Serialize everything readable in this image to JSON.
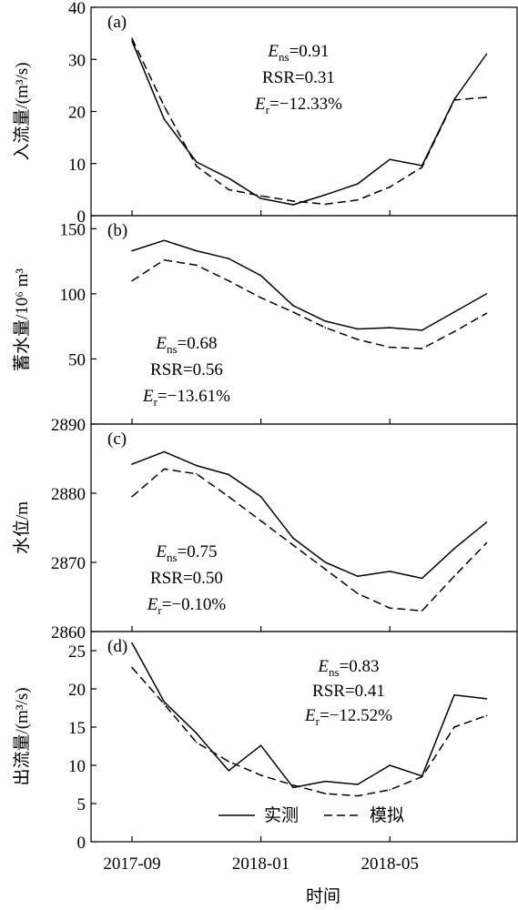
{
  "figure": {
    "xlabel": "时间",
    "x_ticks": [
      {
        "x": 0,
        "label": "2017-09"
      },
      {
        "x": 4,
        "label": "2018-01"
      },
      {
        "x": 8,
        "label": "2018-05"
      }
    ],
    "legend": {
      "placement": "bottom of panel (d)",
      "entries": [
        {
          "series": "observed",
          "label": "实测",
          "style": "solid"
        },
        {
          "series": "simulated",
          "label": "模拟",
          "style": "dashed"
        }
      ]
    }
  },
  "chart_data": [
    {
      "type": "line",
      "panel": "(a)",
      "ylabel": "入流量/(m³/s)",
      "ylim": [
        0,
        40
      ],
      "yticks": [
        0,
        10,
        20,
        30,
        40
      ],
      "x": [
        0,
        1,
        2,
        3,
        4,
        5,
        6,
        7,
        8,
        9,
        10,
        11
      ],
      "series": [
        {
          "key": "observed",
          "values": [
            33.5,
            18.5,
            10.3,
            7.2,
            3.3,
            2.1,
            4.0,
            6.1,
            10.8,
            9.6,
            22.3,
            31.0
          ]
        },
        {
          "key": "simulated",
          "values": [
            34.0,
            21.0,
            9.5,
            5.0,
            3.8,
            2.8,
            2.2,
            3.0,
            5.5,
            9.3,
            22.2,
            22.7
          ]
        }
      ],
      "annotation": [
        {
          "sym": "E",
          "sub": "ns",
          "val": "=0.91"
        },
        {
          "sym": "",
          "sub": "",
          "val": "RSR=0.31"
        },
        {
          "sym": "E",
          "sub": "r",
          "val": "=−12.33%"
        }
      ]
    },
    {
      "type": "line",
      "panel": "(b)",
      "ylabel": "蓄水量/10⁶ m³",
      "ylim": [
        0,
        160
      ],
      "yticks": [
        50,
        100,
        150
      ],
      "x": [
        0,
        1,
        2,
        3,
        4,
        5,
        6,
        7,
        8,
        9,
        10,
        11
      ],
      "series": [
        {
          "key": "observed",
          "values": [
            133,
            141,
            133,
            127,
            114,
            91,
            79,
            73,
            74,
            72,
            86,
            100
          ]
        },
        {
          "key": "simulated",
          "values": [
            110,
            126,
            122,
            110,
            97,
            86,
            74,
            65,
            59,
            58,
            71,
            85
          ]
        }
      ],
      "annotation": [
        {
          "sym": "E",
          "sub": "ns",
          "val": "=0.68"
        },
        {
          "sym": "",
          "sub": "",
          "val": "RSR=0.56"
        },
        {
          "sym": "E",
          "sub": "r",
          "val": "=−13.61%"
        }
      ]
    },
    {
      "type": "line",
      "panel": "(c)",
      "ylabel": "水位/m",
      "ylim": [
        2860,
        2890
      ],
      "yticks": [
        2860,
        2870,
        2880,
        2890
      ],
      "x": [
        0,
        1,
        2,
        3,
        4,
        5,
        6,
        7,
        8,
        9,
        10,
        11
      ],
      "series": [
        {
          "key": "observed",
          "values": [
            2884.2,
            2886.0,
            2884.0,
            2882.7,
            2879.5,
            2873.5,
            2870.0,
            2868.0,
            2868.7,
            2867.7,
            2872.0,
            2875.8
          ]
        },
        {
          "key": "simulated",
          "values": [
            2879.5,
            2883.5,
            2882.8,
            2879.5,
            2876.0,
            2872.5,
            2869.0,
            2865.5,
            2863.4,
            2863.0,
            2868.0,
            2872.8
          ]
        }
      ],
      "annotation": [
        {
          "sym": "E",
          "sub": "ns",
          "val": "=0.75"
        },
        {
          "sym": "",
          "sub": "",
          "val": "RSR=0.50"
        },
        {
          "sym": "E",
          "sub": "r",
          "val": "=−0.10%"
        }
      ]
    },
    {
      "type": "line",
      "panel": "(d)",
      "ylabel": "出流量/(m³/s)",
      "ylim": [
        0,
        27.5
      ],
      "yticks": [
        0,
        5,
        10,
        15,
        20,
        25
      ],
      "x": [
        0,
        1,
        2,
        3,
        4,
        5,
        6,
        7,
        8,
        9,
        10,
        11
      ],
      "series": [
        {
          "key": "observed",
          "values": [
            26.0,
            18.3,
            14.2,
            9.3,
            12.6,
            7.1,
            7.9,
            7.5,
            10.0,
            8.6,
            19.2,
            18.7
          ]
        },
        {
          "key": "simulated",
          "values": [
            22.8,
            18.0,
            13.0,
            10.5,
            8.7,
            7.4,
            6.3,
            6.0,
            6.8,
            8.5,
            15.0,
            16.5
          ]
        }
      ],
      "annotation": [
        {
          "sym": "E",
          "sub": "ns",
          "val": "=0.83"
        },
        {
          "sym": "",
          "sub": "",
          "val": "RSR=0.41"
        },
        {
          "sym": "E",
          "sub": "r",
          "val": "=−12.52%"
        }
      ]
    }
  ]
}
